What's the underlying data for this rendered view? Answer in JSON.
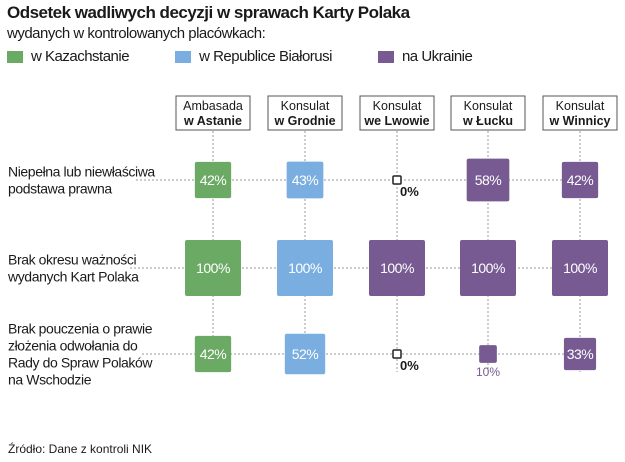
{
  "chart_data": {
    "type": "proportional-square-matrix",
    "title": "Odsetek wadliwych decyzji w sprawach Karty Polaka",
    "subtitle": "wydanych w kontrolowanych placówkach:",
    "legend": [
      {
        "label": "w Kazachstanie",
        "color": "#6aaa64"
      },
      {
        "label": "w Republice Białorusi",
        "color": "#7aaee0"
      },
      {
        "label": "na Ukrainie",
        "color": "#775a92"
      }
    ],
    "columns": [
      {
        "line1": "Ambasada",
        "line2": "w Astanie",
        "group": 0
      },
      {
        "line1": "Konsulat",
        "line2": "w Grodnie",
        "group": 1
      },
      {
        "line1": "Konsulat",
        "line2": "we Lwowie",
        "group": 2
      },
      {
        "line1": "Konsulat",
        "line2": "w Łucku",
        "group": 2
      },
      {
        "line1": "Konsulat",
        "line2": "w Winnicy",
        "group": 2
      }
    ],
    "rows": [
      {
        "label": [
          "Niepełna lub niewłaściwa",
          "podstawa prawna"
        ],
        "values": [
          42,
          43,
          0,
          58,
          42
        ]
      },
      {
        "label": [
          "Brak okresu ważności",
          "wydanych Kart Polaka"
        ],
        "values": [
          100,
          100,
          100,
          100,
          100
        ]
      },
      {
        "label": [
          "Brak pouczenia o prawie",
          "złożenia odwołania do",
          "Rady do Spraw Polaków",
          "na Wschodzie"
        ],
        "values": [
          42,
          52,
          0,
          10,
          33
        ]
      }
    ],
    "unit": "%"
  },
  "source": "Źródło: Dane z kontroli NIK"
}
